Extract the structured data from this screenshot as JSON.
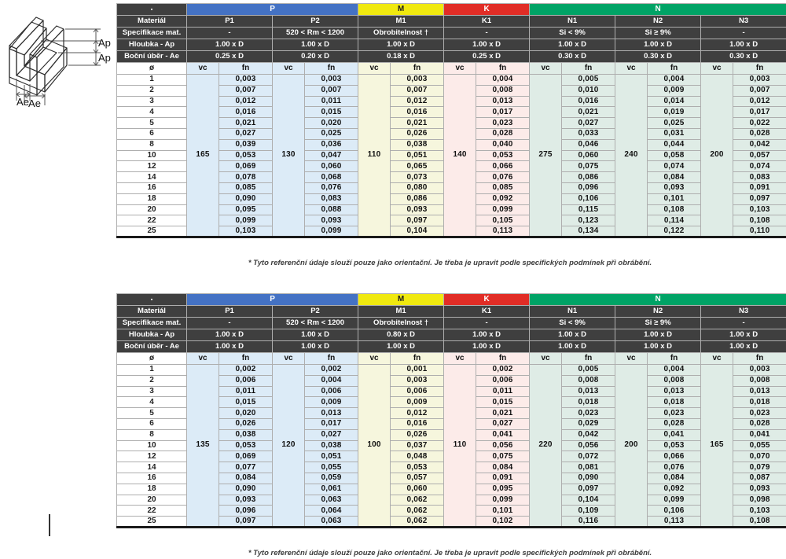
{
  "colors": {
    "header_bg": "#3f3f3f",
    "group_P": "#4472c4",
    "group_M": "#f0e90f",
    "group_K": "#e12d26",
    "group_N": "#00a366",
    "tint_P": "#dcebf7",
    "tint_M": "#f6f6dd",
    "tint_K": "#fcebe9",
    "tint_N": "#dfece6"
  },
  "labels": {
    "corner": "▪",
    "material_row": "Materiál",
    "spec_row": "Specifikace mat.",
    "ap_row": "Hloubka - Ap",
    "ae_row": "Boční úběr - Ae",
    "diameter": "ø",
    "vc": "vc",
    "fn": "fn",
    "ap_dim": "Ap",
    "ae_dim": "Ae"
  },
  "footnote": "* Tyto referenční údaje slouží pouze jako orientační. Je třeba je upravit podle specifických podmínek při obrábění.",
  "diameters": [
    "1",
    "2",
    "3",
    "4",
    "5",
    "6",
    "8",
    "10",
    "12",
    "14",
    "16",
    "18",
    "20",
    "22",
    "25"
  ],
  "groups": [
    {
      "label": "P",
      "color_key": "P",
      "cols": 2
    },
    {
      "label": "M",
      "color_key": "M",
      "cols": 1
    },
    {
      "label": "K",
      "color_key": "K",
      "cols": 1
    },
    {
      "label": "N",
      "color_key": "N",
      "cols": 3
    }
  ],
  "tables": [
    {
      "name": "shoulder-milling",
      "columns": [
        {
          "material": "P1",
          "group": "P",
          "spec": "-",
          "ap": "1.00 x D",
          "ae": "0.25 x D",
          "vc": "165",
          "fn": [
            "0,003",
            "0,007",
            "0,012",
            "0,016",
            "0,021",
            "0,027",
            "0,039",
            "0,053",
            "0,069",
            "0,078",
            "0,085",
            "0,090",
            "0,095",
            "0,099",
            "0,103"
          ]
        },
        {
          "material": "P2",
          "group": "P",
          "spec": "520 < Rm < 1200",
          "ap": "1.00 x D",
          "ae": "0.20 x D",
          "vc": "130",
          "fn": [
            "0,003",
            "0,007",
            "0,011",
            "0,015",
            "0,020",
            "0,025",
            "0,036",
            "0,047",
            "0,060",
            "0,068",
            "0,076",
            "0,083",
            "0,088",
            "0,093",
            "0,099"
          ]
        },
        {
          "material": "M1",
          "group": "M",
          "spec": "Obrobitelnost †",
          "ap": "1.00 x D",
          "ae": "0.18 x D",
          "vc": "110",
          "fn": [
            "0,003",
            "0,007",
            "0,012",
            "0,016",
            "0,021",
            "0,026",
            "0,038",
            "0,051",
            "0,065",
            "0,073",
            "0,080",
            "0,086",
            "0,093",
            "0,097",
            "0,104"
          ]
        },
        {
          "material": "K1",
          "group": "K",
          "spec": "-",
          "ap": "1.00 x D",
          "ae": "0.25 x D",
          "vc": "140",
          "fn": [
            "0,004",
            "0,008",
            "0,013",
            "0,017",
            "0,023",
            "0,028",
            "0,040",
            "0,053",
            "0,066",
            "0,076",
            "0,085",
            "0,092",
            "0,099",
            "0,105",
            "0,113"
          ]
        },
        {
          "material": "N1",
          "group": "N",
          "spec": "Si < 9%",
          "ap": "1.00 x D",
          "ae": "0.30 x D",
          "vc": "275",
          "fn": [
            "0,005",
            "0,010",
            "0,016",
            "0,021",
            "0,027",
            "0,033",
            "0,046",
            "0,060",
            "0,075",
            "0,086",
            "0,096",
            "0,106",
            "0,115",
            "0,123",
            "0,134"
          ]
        },
        {
          "material": "N2",
          "group": "N",
          "spec": "Si ≥ 9%",
          "ap": "1.00 x D",
          "ae": "0.30 x D",
          "vc": "240",
          "fn": [
            "0,004",
            "0,009",
            "0,014",
            "0,019",
            "0,025",
            "0,031",
            "0,044",
            "0,058",
            "0,074",
            "0,084",
            "0,093",
            "0,101",
            "0,108",
            "0,114",
            "0,122"
          ]
        },
        {
          "material": "N3",
          "group": "N",
          "spec": "-",
          "ap": "1.00 x D",
          "ae": "0.30 x D",
          "vc": "200",
          "fn": [
            "0,003",
            "0,007",
            "0,012",
            "0,017",
            "0,022",
            "0,028",
            "0,042",
            "0,057",
            "0,074",
            "0,083",
            "0,091",
            "0,097",
            "0,103",
            "0,108",
            "0,110"
          ]
        }
      ]
    },
    {
      "name": "slot-milling",
      "columns": [
        {
          "material": "P1",
          "group": "P",
          "spec": "-",
          "ap": "1.00 x D",
          "ae": "1.00 x D",
          "vc": "135",
          "fn": [
            "0,002",
            "0,006",
            "0,011",
            "0,015",
            "0,020",
            "0,026",
            "0,038",
            "0,053",
            "0,069",
            "0,077",
            "0,084",
            "0,090",
            "0,093",
            "0,096",
            "0,097"
          ]
        },
        {
          "material": "P2",
          "group": "P",
          "spec": "520 < Rm < 1200",
          "ap": "1.00 x D",
          "ae": "1.00 x D",
          "vc": "120",
          "fn": [
            "0,002",
            "0,004",
            "0,006",
            "0,009",
            "0,013",
            "0,017",
            "0,027",
            "0,038",
            "0,051",
            "0,055",
            "0,059",
            "0,061",
            "0,063",
            "0,064",
            "0,063"
          ]
        },
        {
          "material": "M1",
          "group": "M",
          "spec": "Obrobitelnost †",
          "ap": "0.80 x D",
          "ae": "1.00 x D",
          "vc": "100",
          "fn": [
            "0,001",
            "0,003",
            "0,006",
            "0,009",
            "0,012",
            "0,016",
            "0,026",
            "0,037",
            "0,048",
            "0,053",
            "0,057",
            "0,060",
            "0,062",
            "0,062",
            "0,062"
          ]
        },
        {
          "material": "K1",
          "group": "K",
          "spec": "-",
          "ap": "1.00 x D",
          "ae": "1.00 x D",
          "vc": "110",
          "fn": [
            "0,002",
            "0,006",
            "0,011",
            "0,015",
            "0,021",
            "0,027",
            "0,041",
            "0,056",
            "0,075",
            "0,084",
            "0,091",
            "0,095",
            "0,099",
            "0,101",
            "0,102"
          ]
        },
        {
          "material": "N1",
          "group": "N",
          "spec": "Si < 9%",
          "ap": "1.00 x D",
          "ae": "1.00 x D",
          "vc": "220",
          "fn": [
            "0,005",
            "0,008",
            "0,013",
            "0,018",
            "0,023",
            "0,029",
            "0,042",
            "0,056",
            "0,072",
            "0,081",
            "0,090",
            "0,097",
            "0,104",
            "0,109",
            "0,116"
          ]
        },
        {
          "material": "N2",
          "group": "N",
          "spec": "Si ≥ 9%",
          "ap": "1.00 x D",
          "ae": "1.00 x D",
          "vc": "200",
          "fn": [
            "0,004",
            "0,008",
            "0,013",
            "0,018",
            "0,023",
            "0,028",
            "0,041",
            "0,053",
            "0,066",
            "0,076",
            "0,084",
            "0,092",
            "0,099",
            "0,106",
            "0,113"
          ]
        },
        {
          "material": "N3",
          "group": "N",
          "spec": "-",
          "ap": "1.00 x D",
          "ae": "1.00 x D",
          "vc": "165",
          "fn": [
            "0,003",
            "0,008",
            "0,013",
            "0,018",
            "0,023",
            "0,028",
            "0,041",
            "0,055",
            "0,070",
            "0,079",
            "0,087",
            "0,093",
            "0,098",
            "0,103",
            "0,108"
          ]
        }
      ]
    }
  ]
}
